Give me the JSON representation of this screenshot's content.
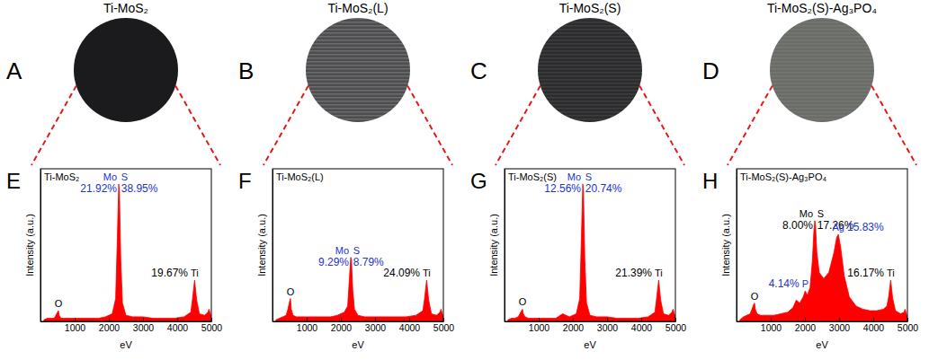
{
  "photos": [
    {
      "panel": "A",
      "title": "Ti-MoS₂"
    },
    {
      "panel": "B",
      "title": "Ti-MoS₂(L)"
    },
    {
      "panel": "C",
      "title": "Ti-MoS₂(S)"
    },
    {
      "panel": "D",
      "title": "Ti-MoS₂(S)-Ag₃PO₄"
    }
  ],
  "chart_data": [
    {
      "type": "area",
      "panel": "E",
      "title": "Ti-MoS₂",
      "x_label": "eV",
      "y_label": "Intensity (a.u.)",
      "color": "#ff0000",
      "xlim": [
        0,
        5000
      ],
      "xticks": [
        1000,
        2000,
        3000,
        4000,
        5000
      ],
      "ylim": [
        0,
        100
      ],
      "tick_labels": "x",
      "x": [
        100,
        200,
        300,
        400,
        450,
        500,
        525,
        550,
        600,
        700,
        900,
        1100,
        1300,
        1500,
        1700,
        1900,
        2100,
        2200,
        2250,
        2290,
        2310,
        2350,
        2400,
        2500,
        2700,
        3000,
        3300,
        3600,
        3900,
        4200,
        4400,
        4450,
        4510,
        4570,
        4650,
        4800,
        4900,
        4930,
        4970,
        5000
      ],
      "values": [
        1,
        2,
        2,
        2,
        4,
        6,
        7,
        4,
        2,
        2,
        2,
        2,
        2,
        2,
        2,
        3,
        5,
        15,
        55,
        90,
        85,
        40,
        12,
        4,
        3,
        3,
        2,
        2,
        2,
        3,
        6,
        15,
        27,
        14,
        5,
        4,
        6,
        8,
        5,
        3
      ],
      "peaks": [
        {
          "label": "O",
          "energy": 525,
          "color": "#000000"
        },
        {
          "label": "Mo",
          "energy": 2290,
          "color": "#2233cc",
          "composition": {
            "text": "21.92%",
            "color": "#2233cc"
          }
        },
        {
          "label": "S",
          "energy": 2310,
          "color": "#2233cc",
          "composition": {
            "text": "38.95%",
            "color": "#2233cc"
          }
        },
        {
          "label": "Ti",
          "energy": 4510,
          "color": "#000000",
          "composition": {
            "text": "19.67%",
            "color": "#000000"
          }
        }
      ]
    },
    {
      "type": "area",
      "panel": "F",
      "title": "Ti-MoS₂(L)",
      "x_label": "eV",
      "y_label": "Intensity (a.u.)",
      "color": "#ff0000",
      "xlim": [
        0,
        5000
      ],
      "xticks": [
        1000,
        2000,
        3000,
        4000,
        5000
      ],
      "ylim": [
        0,
        100
      ],
      "tick_labels": "x",
      "x": [
        100,
        200,
        300,
        400,
        450,
        500,
        525,
        550,
        600,
        700,
        900,
        1100,
        1300,
        1500,
        1700,
        1900,
        2100,
        2200,
        2250,
        2290,
        2310,
        2350,
        2400,
        2500,
        2700,
        3000,
        3300,
        3600,
        3900,
        4200,
        4400,
        4450,
        4510,
        4570,
        4650,
        4800,
        4900,
        4930,
        4970,
        5000
      ],
      "values": [
        1,
        2,
        3,
        4,
        8,
        13,
        15,
        8,
        4,
        3,
        3,
        3,
        3,
        3,
        3,
        4,
        6,
        10,
        28,
        42,
        40,
        20,
        8,
        4,
        3,
        3,
        3,
        3,
        3,
        4,
        7,
        15,
        27,
        14,
        5,
        4,
        6,
        8,
        5,
        3
      ],
      "peaks": [
        {
          "label": "O",
          "energy": 525,
          "color": "#000000"
        },
        {
          "label": "Mo",
          "energy": 2290,
          "color": "#2233cc",
          "composition": {
            "text": "9.29%",
            "color": "#2233cc"
          }
        },
        {
          "label": "S",
          "energy": 2310,
          "color": "#2233cc",
          "composition": {
            "text": "8.79%",
            "color": "#2233cc"
          }
        },
        {
          "label": "Ti",
          "energy": 4510,
          "color": "#000000",
          "composition": {
            "text": "24.09%",
            "color": "#000000"
          }
        }
      ]
    },
    {
      "type": "area",
      "panel": "G",
      "title": "Ti-MoS₂(S)",
      "x_label": "eV",
      "y_label": "Intensity (a.u.)",
      "color": "#ff0000",
      "xlim": [
        0,
        5000
      ],
      "xticks": [
        1000,
        2000,
        3000,
        4000,
        5000
      ],
      "ylim": [
        0,
        100
      ],
      "tick_labels": "x",
      "x": [
        100,
        200,
        300,
        400,
        450,
        500,
        525,
        550,
        600,
        700,
        900,
        1100,
        1300,
        1500,
        1700,
        1900,
        2100,
        2200,
        2250,
        2290,
        2310,
        2350,
        2400,
        2500,
        2700,
        3000,
        3300,
        3600,
        3900,
        4200,
        4400,
        4450,
        4510,
        4570,
        4650,
        4800,
        4900,
        4930,
        4970,
        5000
      ],
      "values": [
        1,
        2,
        2,
        3,
        5,
        7,
        8,
        5,
        3,
        2,
        2,
        2,
        2,
        2,
        5,
        3,
        5,
        15,
        55,
        90,
        85,
        40,
        12,
        4,
        3,
        3,
        2,
        2,
        2,
        3,
        6,
        15,
        27,
        14,
        5,
        4,
        6,
        8,
        5,
        3
      ],
      "peaks": [
        {
          "label": "O",
          "energy": 525,
          "color": "#000000"
        },
        {
          "label": "Mo",
          "energy": 2290,
          "color": "#2233cc",
          "composition": {
            "text": "12.56%",
            "color": "#2233cc"
          }
        },
        {
          "label": "S",
          "energy": 2310,
          "color": "#2233cc",
          "composition": {
            "text": "20.74%",
            "color": "#2233cc"
          }
        },
        {
          "label": "Ti",
          "energy": 4510,
          "color": "#000000",
          "composition": {
            "text": "21.39%",
            "color": "#000000"
          }
        }
      ]
    },
    {
      "type": "area",
      "panel": "H",
      "title": "Ti-MoS₂(S)-Ag₃PO₄",
      "x_label": "eV",
      "y_label": "Intensity (a.u.)",
      "color": "#ff0000",
      "xlim": [
        0,
        5000
      ],
      "xticks": [
        1000,
        2000,
        3000,
        4000,
        5000
      ],
      "ylim": [
        0,
        100
      ],
      "tick_labels": "x",
      "x": [
        100,
        200,
        300,
        400,
        450,
        500,
        525,
        550,
        600,
        700,
        900,
        1100,
        1300,
        1500,
        1650,
        1750,
        1850,
        1950,
        2010,
        2070,
        2150,
        2220,
        2260,
        2290,
        2310,
        2350,
        2420,
        2550,
        2700,
        2850,
        2930,
        2980,
        3050,
        3150,
        3300,
        3500,
        3700,
        3900,
        4100,
        4300,
        4400,
        4450,
        4510,
        4570,
        4650,
        4800,
        4900,
        4930,
        4970,
        5000
      ],
      "values": [
        1,
        3,
        4,
        5,
        8,
        11,
        12,
        8,
        5,
        4,
        4,
        4,
        5,
        6,
        9,
        14,
        12,
        16,
        20,
        17,
        22,
        40,
        58,
        66,
        63,
        45,
        32,
        28,
        32,
        45,
        55,
        57,
        48,
        30,
        16,
        10,
        8,
        7,
        7,
        8,
        10,
        16,
        27,
        15,
        7,
        5,
        6,
        8,
        5,
        3
      ],
      "peaks": [
        {
          "label": "O",
          "energy": 525,
          "color": "#000000"
        },
        {
          "label": "P",
          "energy": 2010,
          "color": "#2233cc",
          "composition": {
            "text": "4.14%",
            "color": "#2233cc"
          }
        },
        {
          "label": "Mo",
          "energy": 2290,
          "color": "#000000",
          "composition": {
            "text": "8.00%",
            "color": "#000000"
          }
        },
        {
          "label": "S",
          "energy": 2310,
          "color": "#000000",
          "composition": {
            "text": "17.26%",
            "color": "#000000"
          }
        },
        {
          "label": "Ag",
          "energy": 2980,
          "color": "#2233cc",
          "composition": {
            "text": "15.83%",
            "color": "#2233cc"
          }
        },
        {
          "label": "Ti",
          "energy": 4510,
          "color": "#000000",
          "composition": {
            "text": "16.17%",
            "color": "#000000"
          }
        }
      ]
    }
  ]
}
